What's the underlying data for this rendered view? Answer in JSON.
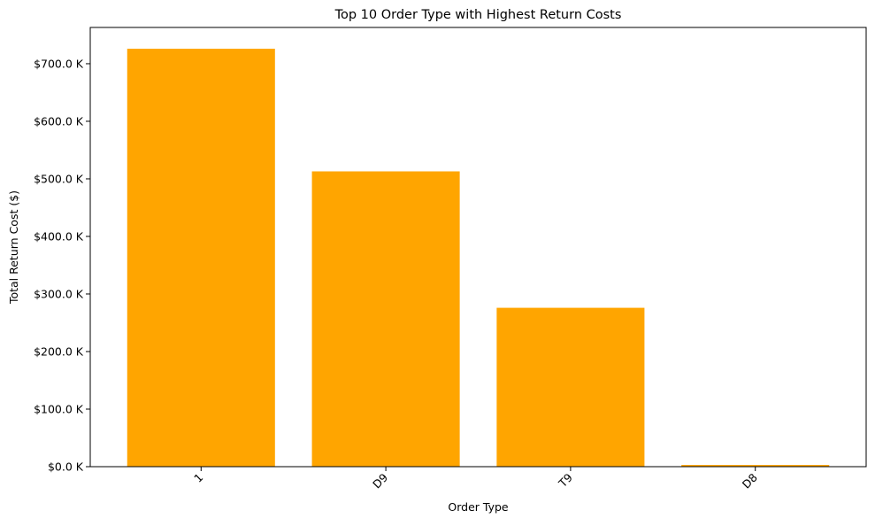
{
  "chart_data": {
    "type": "bar",
    "title": "Top 10 Order Type with Highest Return Costs",
    "xlabel": "Order Type",
    "ylabel": "Total Return Cost ($)",
    "categories": [
      "1",
      "D9",
      "T9",
      "D8"
    ],
    "values": [
      726000,
      513000,
      276000,
      3000
    ],
    "ylim": [
      0,
      763000
    ],
    "yticks": [
      0,
      100000,
      200000,
      300000,
      400000,
      500000,
      600000,
      700000
    ],
    "ytick_labels": [
      "$0.0 K",
      "$100.0 K",
      "$200.0 K",
      "$300.0 K",
      "$400.0 K",
      "$500.0 K",
      "$600.0 K",
      "$700.0 K"
    ],
    "xtick_rotation": 45,
    "bar_color": "#ffa500",
    "grid": false,
    "legend": false
  }
}
